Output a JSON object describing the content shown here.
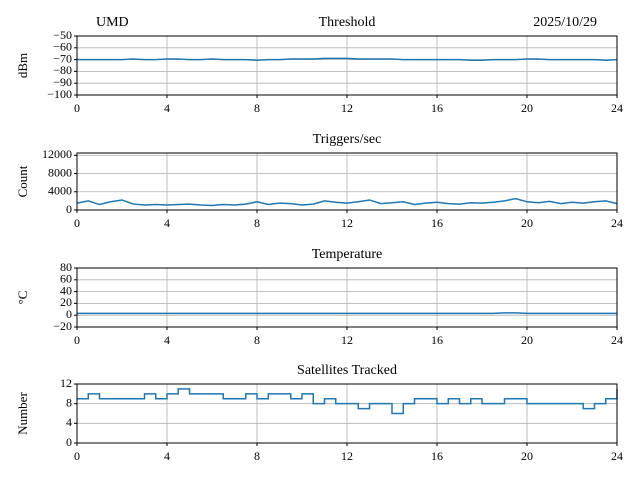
{
  "chart_data": [
    {
      "type": "line",
      "title": "Threshold",
      "left_title": "UMD",
      "right_title": "2025/10/29",
      "ylabel": "dBm",
      "color": "#1f77b4",
      "grid": true,
      "x": [
        0,
        0.5,
        1,
        1.5,
        2,
        2.5,
        3,
        3.5,
        4,
        4.5,
        5,
        5.5,
        6,
        6.5,
        7,
        7.5,
        8,
        8.5,
        9,
        9.5,
        10,
        10.5,
        11,
        11.5,
        12,
        12.5,
        13,
        13.5,
        14,
        14.5,
        15,
        15.5,
        16,
        16.5,
        17,
        17.5,
        18,
        18.5,
        19,
        19.5,
        20,
        20.5,
        21,
        21.5,
        22,
        22.5,
        23,
        23.5,
        24
      ],
      "values": [
        -70,
        -70,
        -70,
        -70,
        -70,
        -69.5,
        -70,
        -70,
        -69.5,
        -69.5,
        -70,
        -70,
        -69.5,
        -70,
        -70,
        -70,
        -70.5,
        -70,
        -70,
        -69.5,
        -69.5,
        -69.5,
        -69,
        -69,
        -69,
        -69.5,
        -69.5,
        -69.5,
        -69.5,
        -70,
        -70,
        -70,
        -70,
        -70,
        -70,
        -70.5,
        -70.5,
        -70,
        -70,
        -70,
        -69.5,
        -69.5,
        -70,
        -70,
        -70,
        -70,
        -70,
        -70.5,
        -70
      ],
      "xlim": [
        0,
        24
      ],
      "xticks": [
        0,
        4,
        8,
        12,
        16,
        20,
        24
      ],
      "ylim": [
        -100,
        -50
      ],
      "yticks": [
        {
          "value": -100,
          "label": "−100"
        },
        {
          "value": -90,
          "label": "−90"
        },
        {
          "value": -80,
          "label": "−80"
        },
        {
          "value": -70,
          "label": "−70"
        },
        {
          "value": -60,
          "label": "−60"
        },
        {
          "value": -50,
          "label": "−50"
        }
      ]
    },
    {
      "type": "line",
      "title": "Triggers/sec",
      "ylabel": "Count",
      "color": "#1f77b4",
      "grid": true,
      "x": [
        0,
        0.5,
        1,
        1.5,
        2,
        2.5,
        3,
        3.5,
        4,
        4.5,
        5,
        5.5,
        6,
        6.5,
        7,
        7.5,
        8,
        8.5,
        9,
        9.5,
        10,
        10.5,
        11,
        11.5,
        12,
        12.5,
        13,
        13.5,
        14,
        14.5,
        15,
        15.5,
        16,
        16.5,
        17,
        17.5,
        18,
        18.5,
        19,
        19.5,
        20,
        20.5,
        21,
        21.5,
        22,
        22.5,
        23,
        23.5,
        24
      ],
      "values": [
        1500,
        2000,
        1200,
        1800,
        2200,
        1300,
        1100,
        1200,
        1100,
        1200,
        1300,
        1100,
        1000,
        1200,
        1100,
        1300,
        1800,
        1200,
        1500,
        1400,
        1100,
        1300,
        2000,
        1700,
        1500,
        1800,
        2200,
        1400,
        1600,
        1800,
        1200,
        1500,
        1700,
        1400,
        1300,
        1600,
        1500,
        1700,
        2000,
        2500,
        1800,
        1600,
        1900,
        1400,
        1700,
        1500,
        1800,
        2000,
        1400
      ],
      "xlim": [
        0,
        24
      ],
      "xticks": [
        0,
        4,
        8,
        12,
        16,
        20,
        24
      ],
      "ylim": [
        0,
        12500
      ],
      "yticks": [
        0,
        4000,
        8000,
        12000
      ]
    },
    {
      "type": "line",
      "title": "Temperature",
      "ylabel": "°C",
      "color": "#1f77b4",
      "grid": true,
      "x": [
        0,
        0.5,
        1,
        1.5,
        2,
        2.5,
        3,
        3.5,
        4,
        4.5,
        5,
        5.5,
        6,
        6.5,
        7,
        7.5,
        8,
        8.5,
        9,
        9.5,
        10,
        10.5,
        11,
        11.5,
        12,
        12.5,
        13,
        13.5,
        14,
        14.5,
        15,
        15.5,
        16,
        16.5,
        17,
        17.5,
        18,
        18.5,
        19,
        19.5,
        20,
        20.5,
        21,
        21.5,
        22,
        22.5,
        23,
        23.5,
        24
      ],
      "values": [
        3,
        3,
        3,
        3,
        3,
        3,
        3,
        3,
        3,
        3,
        3,
        3,
        3,
        3,
        3,
        3,
        3,
        3,
        3,
        3,
        3,
        3,
        3,
        3,
        3,
        3,
        3,
        3,
        3,
        3,
        3,
        3,
        3,
        3,
        3,
        3,
        3,
        3,
        4,
        4,
        3,
        3,
        3,
        3,
        3,
        3,
        3,
        3,
        3
      ],
      "xlim": [
        0,
        24
      ],
      "xticks": [
        0,
        4,
        8,
        12,
        16,
        20,
        24
      ],
      "ylim": [
        -20,
        80
      ],
      "yticks": [
        {
          "value": -20,
          "label": "−20"
        },
        0,
        20,
        40,
        60,
        80
      ]
    },
    {
      "type": "step",
      "title": "Satellites Tracked",
      "ylabel": "Number",
      "color": "#1f77b4",
      "grid": true,
      "x": [
        0,
        0.5,
        1,
        1.5,
        2,
        2.5,
        3,
        3.5,
        4,
        4.5,
        5,
        5.5,
        6,
        6.5,
        7,
        7.5,
        8,
        8.5,
        9,
        9.5,
        10,
        10.5,
        11,
        11.5,
        12,
        12.5,
        13,
        13.5,
        14,
        14.5,
        15,
        15.5,
        16,
        16.5,
        17,
        17.5,
        18,
        18.5,
        19,
        19.5,
        20,
        20.5,
        21,
        21.5,
        22,
        22.5,
        23,
        23.5,
        24
      ],
      "values": [
        9,
        10,
        9,
        9,
        9,
        9,
        10,
        9,
        10,
        11,
        10,
        10,
        10,
        9,
        9,
        10,
        9,
        10,
        10,
        9,
        10,
        8,
        9,
        8,
        8,
        7,
        8,
        8,
        6,
        8,
        9,
        9,
        8,
        9,
        8,
        9,
        8,
        8,
        9,
        9,
        8,
        8,
        8,
        8,
        8,
        7,
        8,
        9,
        11
      ],
      "xlim": [
        0,
        24
      ],
      "xticks": [
        0,
        4,
        8,
        12,
        16,
        20,
        24
      ],
      "ylim": [
        0,
        12
      ],
      "yticks": [
        0,
        4,
        8,
        12
      ]
    }
  ]
}
